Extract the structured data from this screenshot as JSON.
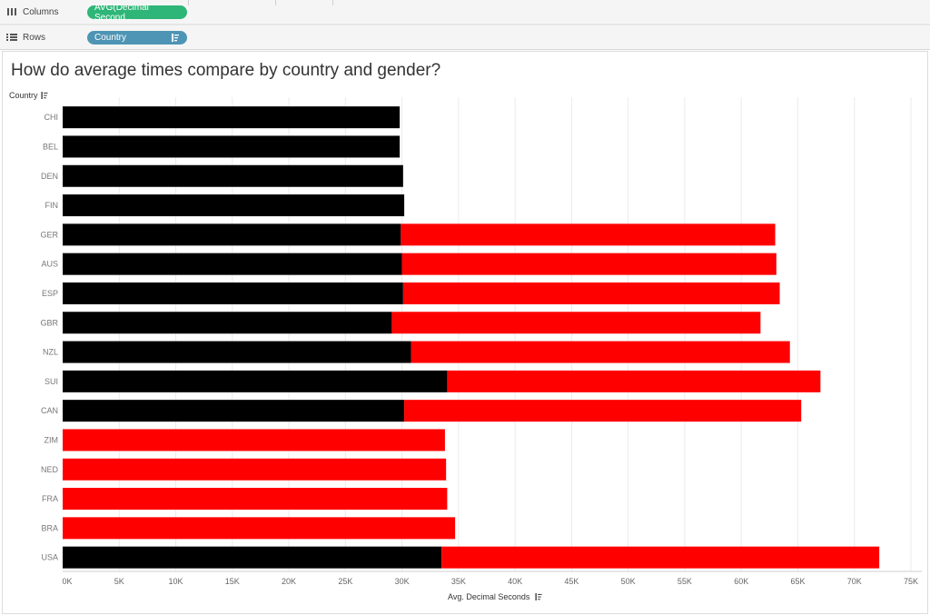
{
  "shelves": {
    "columns_label": "Columns",
    "columns_pill": "AVG(Decimal Second..",
    "rows_label": "Rows",
    "rows_pill": "Country"
  },
  "colors": {
    "men": "#000000",
    "women": "#ff0000",
    "grid": "#ebebeb",
    "columns_pill": "#2db677",
    "rows_pill": "#4e95b5"
  },
  "chart_data": {
    "type": "bar",
    "orientation": "horizontal",
    "stacked": true,
    "title": "How do average times compare by country and gender?",
    "row_header": "Country",
    "xlabel": "Avg. Decimal Seconds",
    "xlim": [
      0,
      75000
    ],
    "xticks": [
      "0K",
      "5K",
      "10K",
      "15K",
      "20K",
      "25K",
      "30K",
      "35K",
      "40K",
      "45K",
      "50K",
      "55K",
      "60K",
      "65K",
      "70K",
      "75K"
    ],
    "grid": true,
    "categories": [
      "CHI",
      "BEL",
      "DEN",
      "FIN",
      "GER",
      "AUS",
      "ESP",
      "GBR",
      "NZL",
      "SUI",
      "CAN",
      "ZIM",
      "NED",
      "FRA",
      "BRA",
      "USA"
    ],
    "series": [
      {
        "color": "#000000",
        "values": [
          29800,
          29800,
          30100,
          30200,
          29900,
          30000,
          30100,
          29100,
          30800,
          34000,
          30200,
          0,
          0,
          0,
          0,
          33500
        ]
      },
      {
        "color": "#ff0000",
        "values": [
          0,
          0,
          0,
          0,
          33100,
          33100,
          33300,
          32600,
          33500,
          33000,
          35100,
          33800,
          33900,
          34000,
          34700,
          38700
        ]
      }
    ]
  }
}
